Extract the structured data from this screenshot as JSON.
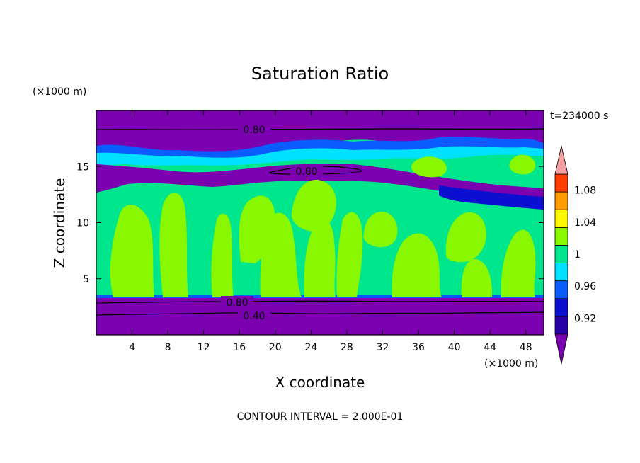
{
  "chart_data": {
    "type": "heatmap",
    "title": "Saturation Ratio",
    "xlabel": "X coordinate",
    "ylabel": "Z coordinate",
    "x_unit": "(×1000 m)",
    "y_unit": "(×1000 m)",
    "time_label": "t=234000 s",
    "footer": "CONTOUR INTERVAL = 2.000E-01",
    "xlim": [
      0,
      50
    ],
    "ylim": [
      0,
      20
    ],
    "x_ticks": [
      "4",
      "8",
      "12",
      "16",
      "20",
      "24",
      "28",
      "32",
      "36",
      "40",
      "44",
      "48"
    ],
    "x_tick_values": [
      4,
      8,
      12,
      16,
      20,
      24,
      28,
      32,
      36,
      40,
      44,
      48
    ],
    "y_ticks": [
      "5",
      "10",
      "15"
    ],
    "y_tick_values": [
      5,
      10,
      15
    ],
    "colorbar": {
      "labels": [
        "0.92",
        "0.96",
        "1",
        "1.04",
        "1.08"
      ],
      "levels": [
        0.9,
        0.92,
        0.94,
        0.96,
        0.98,
        1.0,
        1.02,
        1.04,
        1.06,
        1.08,
        1.1
      ],
      "colors": [
        "#7a00b0",
        "#2a00a6",
        "#0a0fd0",
        "#0a5cff",
        "#00e0ff",
        "#00e68c",
        "#88f700",
        "#fff700",
        "#ff9d00",
        "#ff3b00",
        "#f5a0a0"
      ]
    },
    "contour_labels": [
      "0.80",
      "0.80",
      "0.80",
      "0.40"
    ],
    "layers": [
      {
        "z_range": [
          0,
          3.4
        ],
        "value": 0.4
      },
      {
        "z_range": [
          3.4,
          13
        ],
        "value": 0.98
      },
      {
        "z_range": [
          13,
          18
        ],
        "value": 0.9
      },
      {
        "z_range": [
          18,
          20
        ],
        "value": 0.8
      }
    ]
  }
}
